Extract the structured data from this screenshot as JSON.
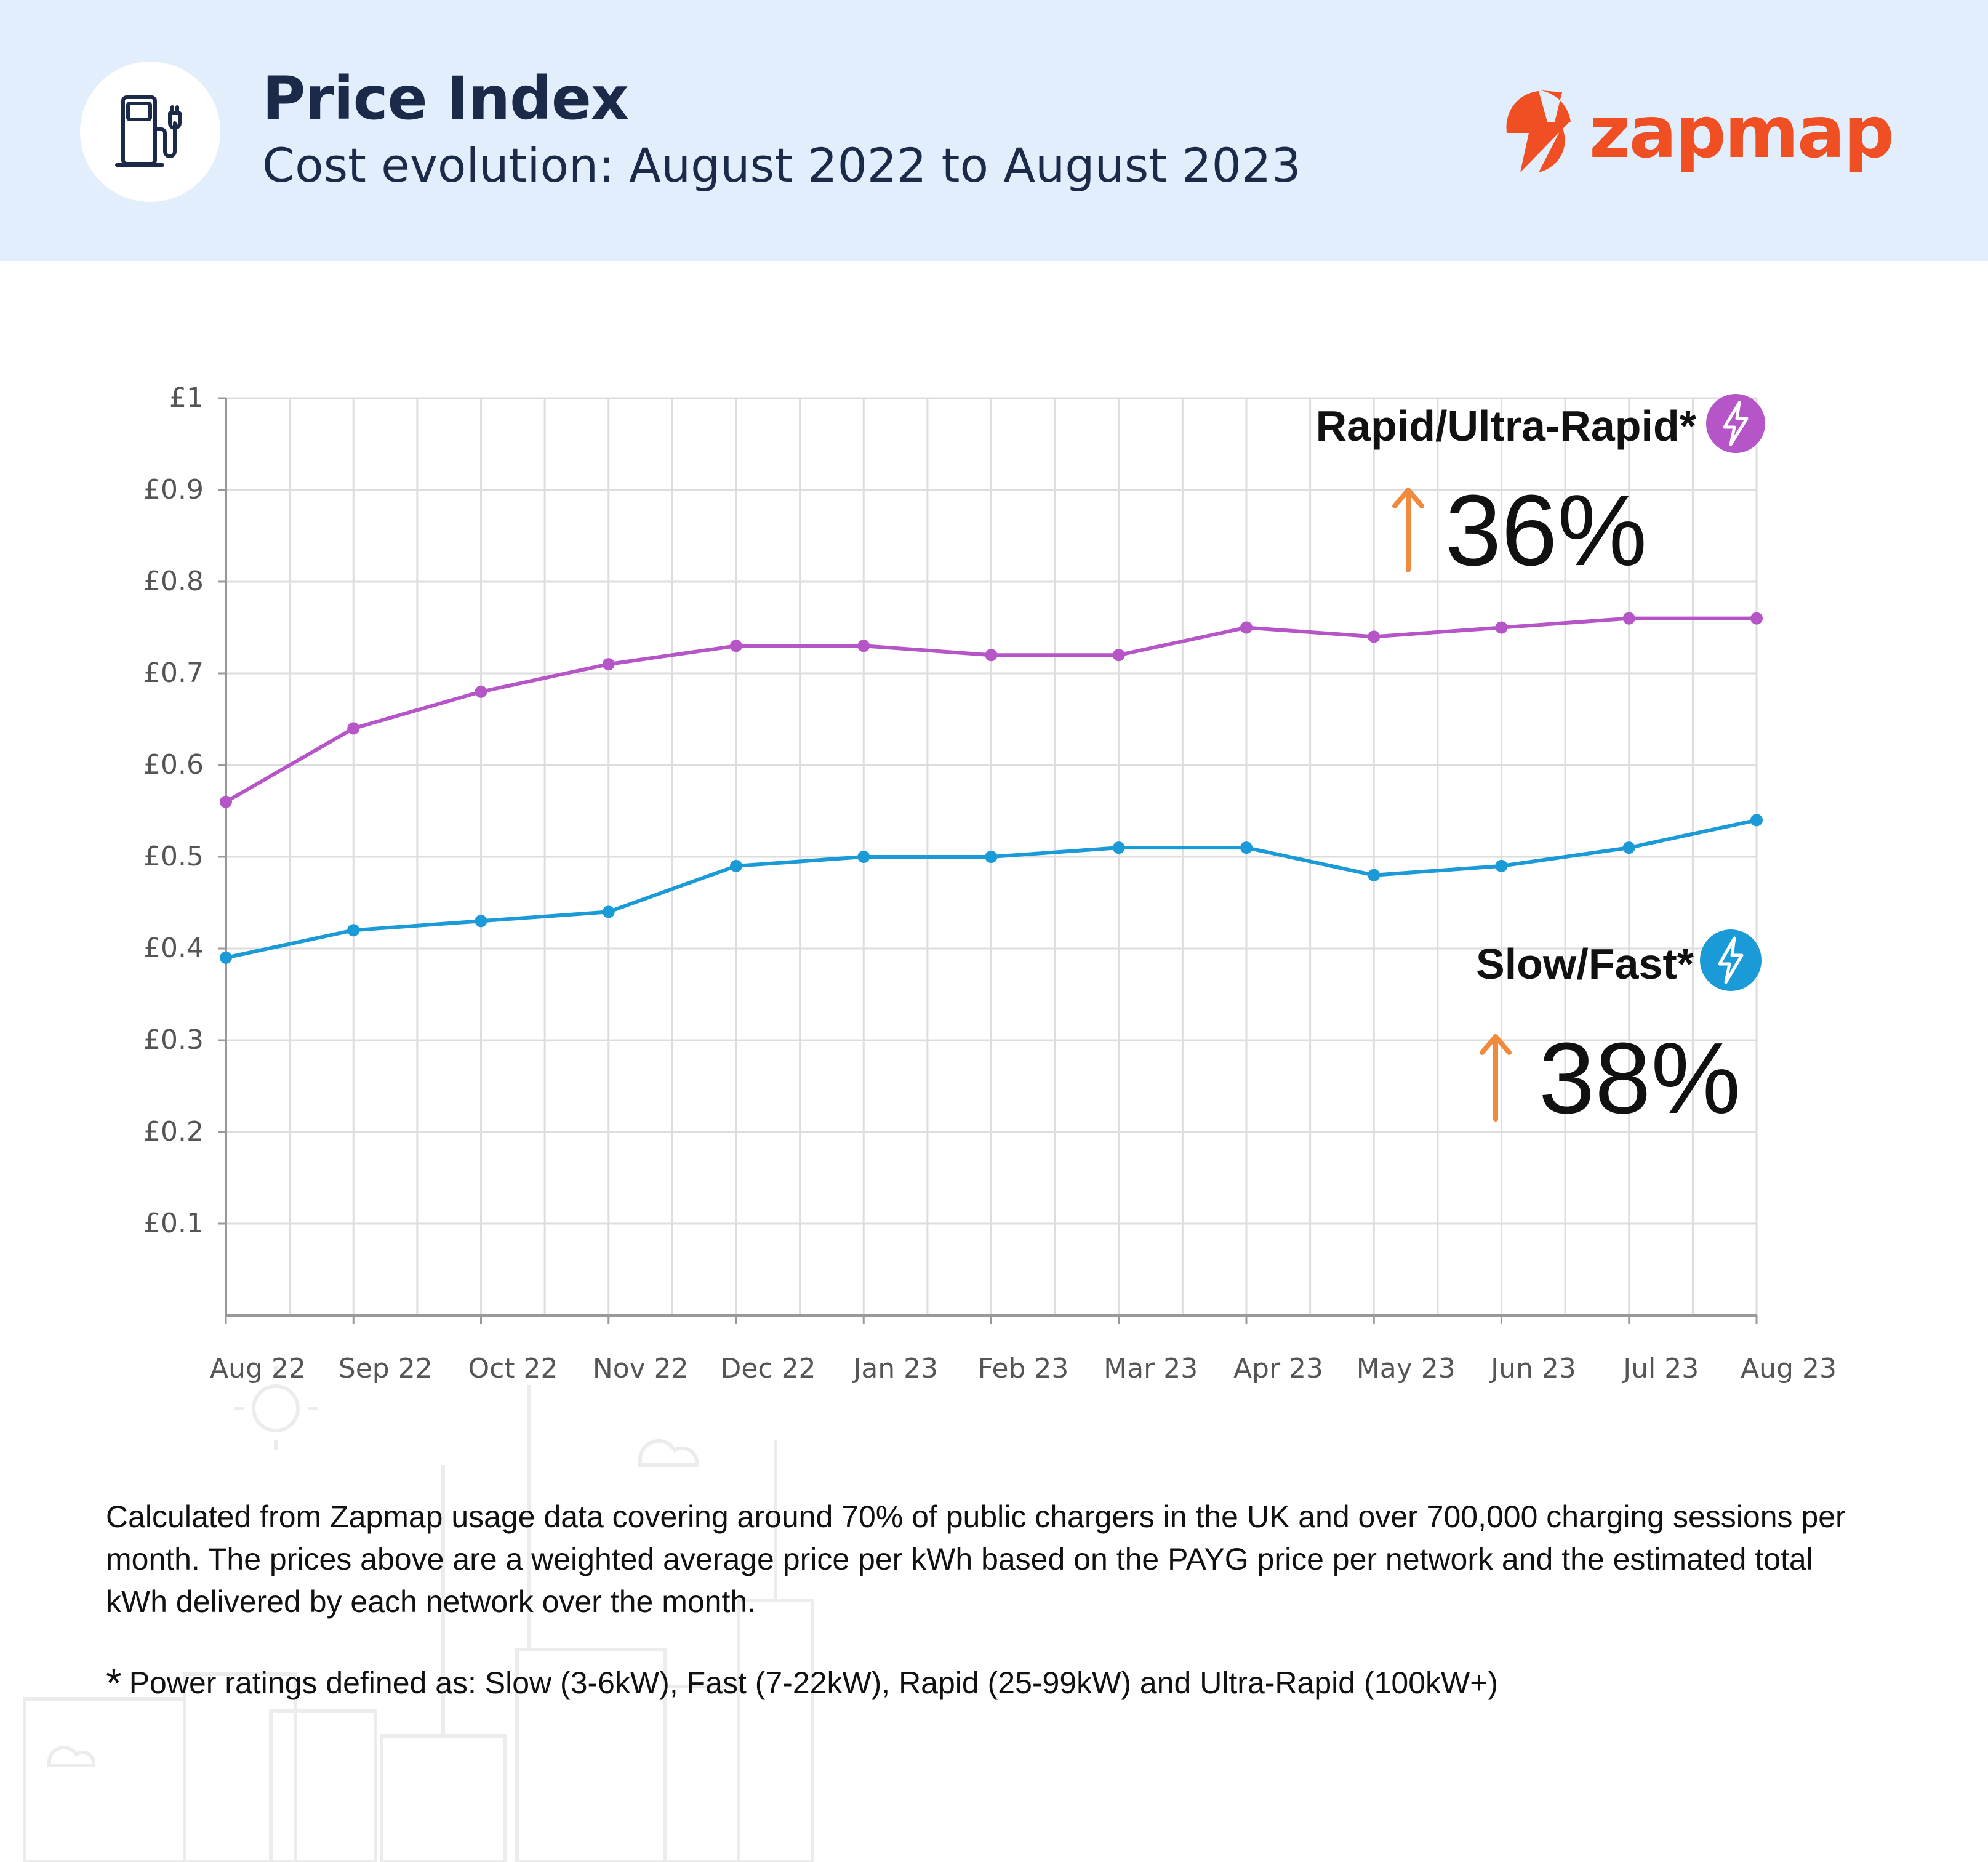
{
  "header": {
    "title": "Price Index",
    "subtitle": "Cost evolution: August 2022 to August 2023",
    "logo_text": "zapmap",
    "icon": "ev-charger-icon"
  },
  "colors": {
    "header_bg": "#e3eefc",
    "title_color": "#1c2a4a",
    "brand": "#f04e23",
    "rapid": "#b655c8",
    "slow": "#1a9ad6",
    "arrow": "#f08a3c",
    "grid": "#dddddd"
  },
  "chart_data": {
    "type": "line",
    "categories": [
      "Aug 22",
      "Sep 22",
      "Oct 22",
      "Nov 22",
      "Dec 22",
      "Jan 23",
      "Feb 23",
      "Mar 23",
      "Apr 23",
      "May 23",
      "Jun 23",
      "Jul 23",
      "Aug 23"
    ],
    "series": [
      {
        "name": "Rapid/Ultra-Rapid*",
        "color": "#b655c8",
        "values": [
          0.56,
          0.64,
          0.68,
          0.71,
          0.73,
          0.73,
          0.72,
          0.72,
          0.75,
          0.74,
          0.75,
          0.76,
          0.76
        ],
        "change_label": "36%",
        "icon": "lightning-bolt-icon"
      },
      {
        "name": "Slow/Fast*",
        "color": "#1a9ad6",
        "values": [
          0.39,
          0.42,
          0.43,
          0.44,
          0.49,
          0.5,
          0.5,
          0.51,
          0.51,
          0.48,
          0.49,
          0.51,
          0.54
        ],
        "change_label": "38%",
        "icon": "lightning-bolt-icon"
      }
    ],
    "yticks": [
      {
        "value": 1.0,
        "label": "£1"
      },
      {
        "value": 0.9,
        "label": "£0.9"
      },
      {
        "value": 0.8,
        "label": "£0.8"
      },
      {
        "value": 0.7,
        "label": "£0.7"
      },
      {
        "value": 0.6,
        "label": "£0.6"
      },
      {
        "value": 0.5,
        "label": "£0.5"
      },
      {
        "value": 0.4,
        "label": "£0.4"
      },
      {
        "value": 0.3,
        "label": "£0.3"
      },
      {
        "value": 0.2,
        "label": "£0.2"
      },
      {
        "value": 0.1,
        "label": "£0.1"
      }
    ],
    "ylim": [
      0,
      1
    ],
    "grid": true,
    "xlabel": "",
    "ylabel": ""
  },
  "footnote": "Calculated from Zapmap usage data covering around 70% of public chargers in the UK and over 700,000 charging sessions per month. The prices above are a weighted average price per kWh based on the PAYG price per network and the estimated total kWh delivered by each network over the month.",
  "power_note": {
    "star": "*",
    "text": "Power ratings defined as: Slow (3-6kW), Fast (7-22kW), Rapid (25-99kW) and Ultra-Rapid (100kW+)"
  }
}
